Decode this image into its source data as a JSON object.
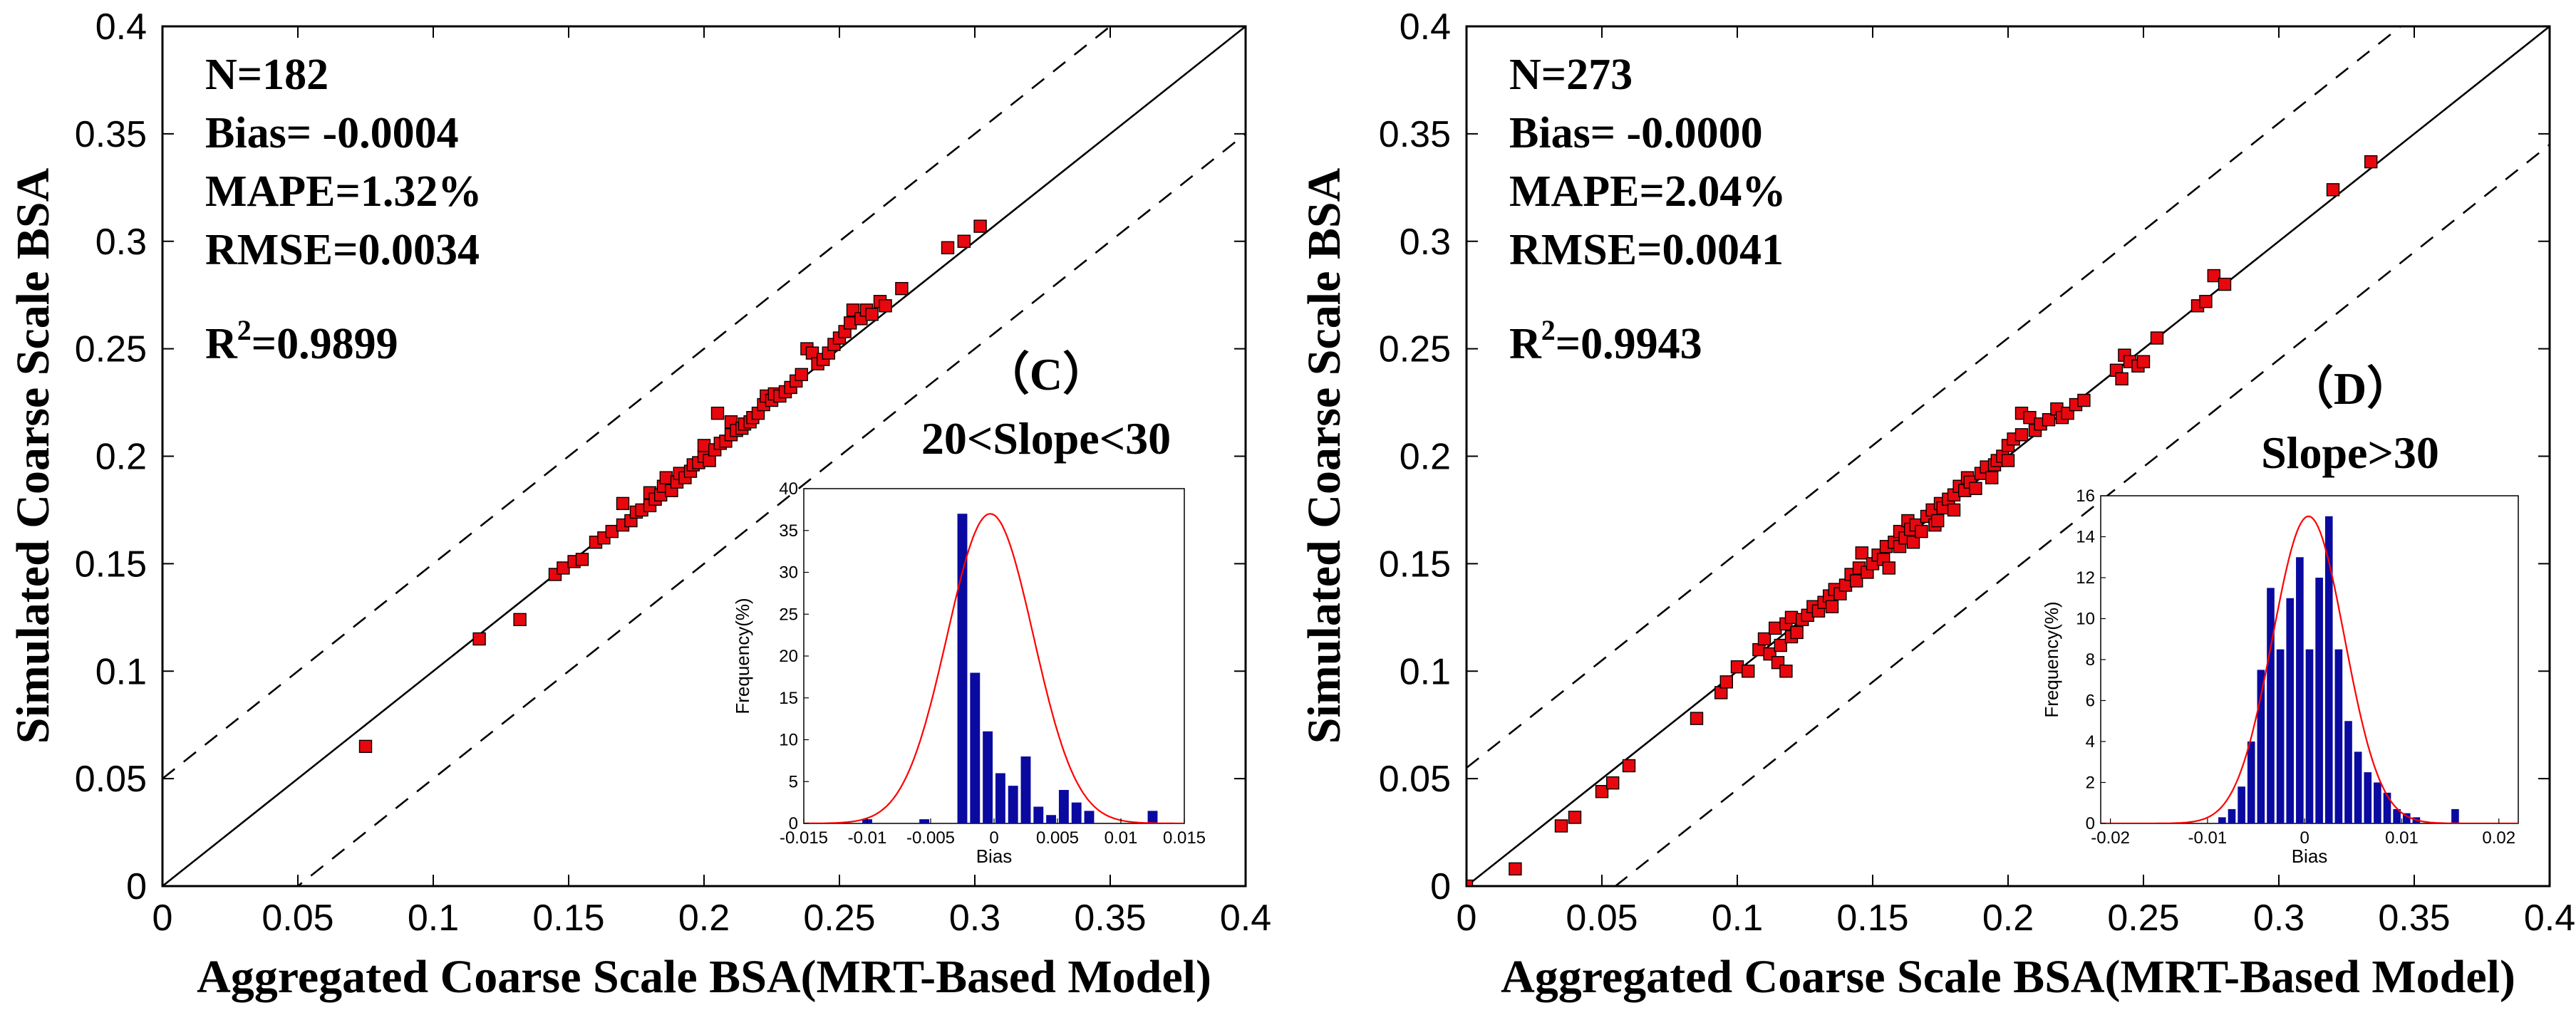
{
  "chart_data": [
    {
      "type": "scatter",
      "xlabel": "Aggregated Coarse Scale BSA(MRT-Based Model)",
      "ylabel": "Simulated Coarse Scale BSA",
      "xlim": [
        0,
        0.4
      ],
      "ylim": [
        0,
        0.4
      ],
      "xticks": [
        "0",
        "0.05",
        "0.1",
        "0.15",
        "0.2",
        "0.25",
        "0.3",
        "0.35",
        "0.4"
      ],
      "yticks": [
        "0",
        "0.05",
        "0.1",
        "0.15",
        "0.2",
        "0.25",
        "0.3",
        "0.35",
        "0.4"
      ],
      "stats": {
        "n": "N=182",
        "bias": "Bias= -0.0004",
        "mape": "MAPE=1.32%",
        "rmse": "RMSE=0.0034",
        "r2_prefix": "R",
        "r2_exp": "2",
        "r2_value": "=0.9899"
      },
      "panel_label": "（C）",
      "panel_subtitle": "20<Slope<30",
      "lines": {
        "one_to_one": {
          "slope": 1,
          "intercept": 0
        },
        "upper": {
          "slope": 1,
          "intercept": 0.05
        },
        "lower": {
          "slope": 1,
          "intercept": -0.05
        }
      },
      "points": [
        [
          0.075,
          0.065
        ],
        [
          0.117,
          0.115
        ],
        [
          0.132,
          0.124
        ],
        [
          0.145,
          0.145
        ],
        [
          0.148,
          0.148
        ],
        [
          0.152,
          0.151
        ],
        [
          0.155,
          0.152
        ],
        [
          0.16,
          0.16
        ],
        [
          0.163,
          0.162
        ],
        [
          0.166,
          0.165
        ],
        [
          0.17,
          0.168
        ],
        [
          0.17,
          0.178
        ],
        [
          0.173,
          0.17
        ],
        [
          0.175,
          0.174
        ],
        [
          0.177,
          0.175
        ],
        [
          0.18,
          0.177
        ],
        [
          0.18,
          0.183
        ],
        [
          0.182,
          0.18
        ],
        [
          0.184,
          0.182
        ],
        [
          0.185,
          0.186
        ],
        [
          0.186,
          0.19
        ],
        [
          0.188,
          0.184
        ],
        [
          0.19,
          0.188
        ],
        [
          0.191,
          0.192
        ],
        [
          0.193,
          0.19
        ],
        [
          0.195,
          0.193
        ],
        [
          0.196,
          0.196
        ],
        [
          0.198,
          0.197
        ],
        [
          0.2,
          0.2
        ],
        [
          0.2,
          0.205
        ],
        [
          0.202,
          0.198
        ],
        [
          0.204,
          0.203
        ],
        [
          0.205,
          0.22
        ],
        [
          0.206,
          0.206
        ],
        [
          0.208,
          0.207
        ],
        [
          0.21,
          0.21
        ],
        [
          0.21,
          0.216
        ],
        [
          0.212,
          0.212
        ],
        [
          0.214,
          0.213
        ],
        [
          0.215,
          0.215
        ],
        [
          0.217,
          0.216
        ],
        [
          0.218,
          0.218
        ],
        [
          0.22,
          0.22
        ],
        [
          0.222,
          0.224
        ],
        [
          0.223,
          0.228
        ],
        [
          0.225,
          0.226
        ],
        [
          0.226,
          0.229
        ],
        [
          0.228,
          0.228
        ],
        [
          0.23,
          0.23
        ],
        [
          0.232,
          0.232
        ],
        [
          0.234,
          0.235
        ],
        [
          0.236,
          0.238
        ],
        [
          0.238,
          0.25
        ],
        [
          0.24,
          0.248
        ],
        [
          0.242,
          0.243
        ],
        [
          0.244,
          0.245
        ],
        [
          0.246,
          0.248
        ],
        [
          0.248,
          0.252
        ],
        [
          0.25,
          0.255
        ],
        [
          0.252,
          0.258
        ],
        [
          0.254,
          0.262
        ],
        [
          0.255,
          0.268
        ],
        [
          0.258,
          0.264
        ],
        [
          0.26,
          0.268
        ],
        [
          0.262,
          0.266
        ],
        [
          0.265,
          0.272
        ],
        [
          0.267,
          0.27
        ],
        [
          0.273,
          0.278
        ],
        [
          0.29,
          0.297
        ],
        [
          0.296,
          0.3
        ],
        [
          0.302,
          0.307
        ]
      ],
      "inset": {
        "type": "histogram",
        "xlabel": "Bias",
        "ylabel": "Frequency(%)",
        "xlim": [
          -0.015,
          0.015
        ],
        "ylim": [
          0,
          40
        ],
        "xticks": [
          "-0.015",
          "-0.01",
          "-0.005",
          "0",
          "0.005",
          "0.01",
          "0.015"
        ],
        "yticks": [
          "0",
          "5",
          "10",
          "15",
          "20",
          "25",
          "30",
          "35",
          "40"
        ],
        "bin_width": 0.001,
        "bins": [
          [
            -0.01,
            0.5
          ],
          [
            -0.0055,
            0.5
          ],
          [
            -0.0025,
            37
          ],
          [
            -0.0015,
            18
          ],
          [
            -0.0005,
            11
          ],
          [
            0.0005,
            6
          ],
          [
            0.0015,
            4.5
          ],
          [
            0.0025,
            8
          ],
          [
            0.0035,
            2
          ],
          [
            0.0045,
            1
          ],
          [
            0.0055,
            4
          ],
          [
            0.0065,
            2.5
          ],
          [
            0.0075,
            1.5
          ],
          [
            0.0125,
            1.5
          ]
        ],
        "curve": {
          "mean": -0.0003,
          "sd": 0.0034,
          "peak": 37
        }
      }
    },
    {
      "type": "scatter",
      "xlabel": "Aggregated Coarse Scale BSA(MRT-Based Model)",
      "ylabel": "Simulated Coarse Scale BSA",
      "xlim": [
        0,
        0.4
      ],
      "ylim": [
        0,
        0.4
      ],
      "xticks": [
        "0",
        "0.05",
        "0.1",
        "0.15",
        "0.2",
        "0.25",
        "0.3",
        "0.35",
        "0.4"
      ],
      "yticks": [
        "0",
        "0.05",
        "0.1",
        "0.15",
        "0.2",
        "0.25",
        "0.3",
        "0.35",
        "0.4"
      ],
      "stats": {
        "n": "N=273",
        "bias": "Bias= -0.0000",
        "mape": "MAPE=2.04%",
        "rmse": "RMSE=0.0041",
        "r2_prefix": "R",
        "r2_exp": "2",
        "r2_value": "=0.9943"
      },
      "panel_label": "（D）",
      "panel_subtitle": "Slope>30",
      "lines": {
        "one_to_one": {
          "slope": 1,
          "intercept": 0
        },
        "upper": {
          "slope": 1,
          "intercept": 0.055
        },
        "lower": {
          "slope": 1,
          "intercept": -0.055
        }
      },
      "points": [
        [
          0,
          0
        ],
        [
          0.018,
          0.008
        ],
        [
          0.035,
          0.028
        ],
        [
          0.04,
          0.032
        ],
        [
          0.05,
          0.044
        ],
        [
          0.054,
          0.048
        ],
        [
          0.06,
          0.056
        ],
        [
          0.085,
          0.078
        ],
        [
          0.094,
          0.09
        ],
        [
          0.096,
          0.095
        ],
        [
          0.1,
          0.102
        ],
        [
          0.104,
          0.1
        ],
        [
          0.108,
          0.11
        ],
        [
          0.11,
          0.115
        ],
        [
          0.112,
          0.108
        ],
        [
          0.114,
          0.12
        ],
        [
          0.115,
          0.104
        ],
        [
          0.116,
          0.112
        ],
        [
          0.118,
          0.122
        ],
        [
          0.118,
          0.1
        ],
        [
          0.12,
          0.125
        ],
        [
          0.12,
          0.116
        ],
        [
          0.122,
          0.118
        ],
        [
          0.124,
          0.124
        ],
        [
          0.126,
          0.126
        ],
        [
          0.128,
          0.13
        ],
        [
          0.13,
          0.128
        ],
        [
          0.132,
          0.132
        ],
        [
          0.134,
          0.135
        ],
        [
          0.135,
          0.13
        ],
        [
          0.136,
          0.138
        ],
        [
          0.138,
          0.136
        ],
        [
          0.14,
          0.14
        ],
        [
          0.142,
          0.145
        ],
        [
          0.144,
          0.142
        ],
        [
          0.145,
          0.148
        ],
        [
          0.146,
          0.155
        ],
        [
          0.148,
          0.146
        ],
        [
          0.15,
          0.15
        ],
        [
          0.152,
          0.154
        ],
        [
          0.154,
          0.152
        ],
        [
          0.155,
          0.158
        ],
        [
          0.156,
          0.148
        ],
        [
          0.158,
          0.16
        ],
        [
          0.16,
          0.165
        ],
        [
          0.16,
          0.158
        ],
        [
          0.162,
          0.162
        ],
        [
          0.163,
          0.17
        ],
        [
          0.164,
          0.166
        ],
        [
          0.165,
          0.16
        ],
        [
          0.166,
          0.168
        ],
        [
          0.168,
          0.165
        ],
        [
          0.17,
          0.172
        ],
        [
          0.172,
          0.175
        ],
        [
          0.173,
          0.168
        ],
        [
          0.174,
          0.17
        ],
        [
          0.175,
          0.178
        ],
        [
          0.176,
          0.176
        ],
        [
          0.178,
          0.18
        ],
        [
          0.18,
          0.182
        ],
        [
          0.18,
          0.175
        ],
        [
          0.182,
          0.186
        ],
        [
          0.184,
          0.184
        ],
        [
          0.185,
          0.19
        ],
        [
          0.186,
          0.188
        ],
        [
          0.188,
          0.185
        ],
        [
          0.19,
          0.192
        ],
        [
          0.192,
          0.195
        ],
        [
          0.194,
          0.19
        ],
        [
          0.195,
          0.196
        ],
        [
          0.196,
          0.198
        ],
        [
          0.198,
          0.2
        ],
        [
          0.2,
          0.205
        ],
        [
          0.2,
          0.198
        ],
        [
          0.202,
          0.208
        ],
        [
          0.205,
          0.21
        ],
        [
          0.205,
          0.22
        ],
        [
          0.208,
          0.218
        ],
        [
          0.21,
          0.212
        ],
        [
          0.212,
          0.215
        ],
        [
          0.215,
          0.217
        ],
        [
          0.218,
          0.222
        ],
        [
          0.22,
          0.218
        ],
        [
          0.222,
          0.22
        ],
        [
          0.225,
          0.224
        ],
        [
          0.228,
          0.226
        ],
        [
          0.24,
          0.24
        ],
        [
          0.242,
          0.236
        ],
        [
          0.243,
          0.247
        ],
        [
          0.245,
          0.244
        ],
        [
          0.248,
          0.242
        ],
        [
          0.25,
          0.244
        ],
        [
          0.255,
          0.255
        ],
        [
          0.27,
          0.27
        ],
        [
          0.273,
          0.272
        ],
        [
          0.276,
          0.284
        ],
        [
          0.28,
          0.28
        ],
        [
          0.32,
          0.324
        ],
        [
          0.334,
          0.337
        ]
      ],
      "inset": {
        "type": "histogram",
        "xlabel": "Bias",
        "ylabel": "Frequency(%)",
        "xlim": [
          -0.021,
          0.022
        ],
        "ylim": [
          0,
          16
        ],
        "xticks": [
          "-0.02",
          "-0.01",
          "0",
          "0.01",
          "0.02"
        ],
        "yticks": [
          "0",
          "2",
          "4",
          "6",
          "8",
          "10",
          "12",
          "14",
          "16"
        ],
        "bin_width": 0.001,
        "bins": [
          [
            -0.0085,
            0.3
          ],
          [
            -0.0075,
            0.7
          ],
          [
            -0.0065,
            1.8
          ],
          [
            -0.0055,
            4
          ],
          [
            -0.0045,
            7.5
          ],
          [
            -0.0035,
            11.5
          ],
          [
            -0.0025,
            8.5
          ],
          [
            -0.0015,
            11
          ],
          [
            -0.0005,
            13
          ],
          [
            0.0005,
            8.5
          ],
          [
            0.0015,
            12
          ],
          [
            0.0025,
            15
          ],
          [
            0.0035,
            8.5
          ],
          [
            0.0045,
            5
          ],
          [
            0.0055,
            3.5
          ],
          [
            0.0065,
            2.5
          ],
          [
            0.0075,
            2
          ],
          [
            0.0085,
            1.5
          ],
          [
            0.0095,
            0.7
          ],
          [
            0.0105,
            0.5
          ],
          [
            0.0115,
            0.3
          ],
          [
            0.0155,
            0.7
          ]
        ],
        "curve": {
          "mean": 0.0004,
          "sd": 0.0037,
          "peak": 15
        }
      }
    }
  ]
}
